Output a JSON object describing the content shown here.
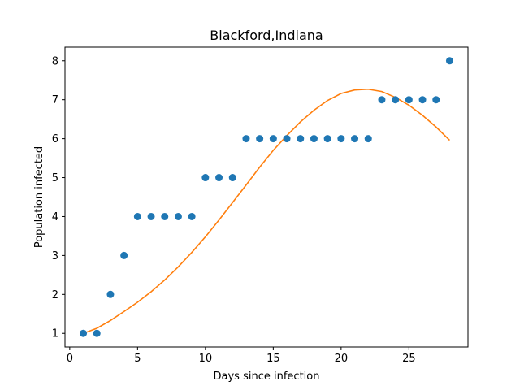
{
  "chart_data": {
    "type": "scatter",
    "title": "Blackford,Indiana",
    "xlabel": "Days since infection",
    "ylabel": "Population infected",
    "xlim": [
      -0.35,
      29.35
    ],
    "ylim": [
      0.65,
      8.35
    ],
    "xticks": [
      0,
      5,
      10,
      15,
      20,
      25
    ],
    "yticks": [
      1,
      2,
      3,
      4,
      5,
      6,
      7,
      8
    ],
    "grid": false,
    "series": [
      {
        "kind": "scatter",
        "color": "#1f77b4",
        "x": [
          1,
          2,
          3,
          4,
          5,
          6,
          7,
          8,
          9,
          10,
          11,
          12,
          13,
          14,
          15,
          16,
          17,
          18,
          19,
          20,
          21,
          22,
          23,
          24,
          25,
          26,
          27,
          28
        ],
        "y": [
          1,
          1,
          2,
          3,
          4,
          4,
          4,
          4,
          4,
          5,
          5,
          5,
          6,
          6,
          6,
          6,
          6,
          6,
          6,
          6,
          6,
          6,
          7,
          7,
          7,
          7,
          7,
          8
        ]
      },
      {
        "kind": "line",
        "color": "#ff7f0e",
        "x": [
          1,
          2,
          3,
          4,
          5,
          6,
          7,
          8,
          9,
          10,
          11,
          12,
          13,
          14,
          15,
          16,
          17,
          18,
          19,
          20,
          21,
          22,
          23,
          24,
          25,
          26,
          27,
          28
        ],
        "y": [
          1.0,
          1.13,
          1.33,
          1.56,
          1.8,
          2.07,
          2.37,
          2.71,
          3.08,
          3.48,
          3.91,
          4.36,
          4.81,
          5.27,
          5.7,
          6.08,
          6.43,
          6.73,
          6.98,
          7.16,
          7.25,
          7.27,
          7.21,
          7.06,
          6.86,
          6.6,
          6.3,
          5.96
        ]
      }
    ]
  }
}
